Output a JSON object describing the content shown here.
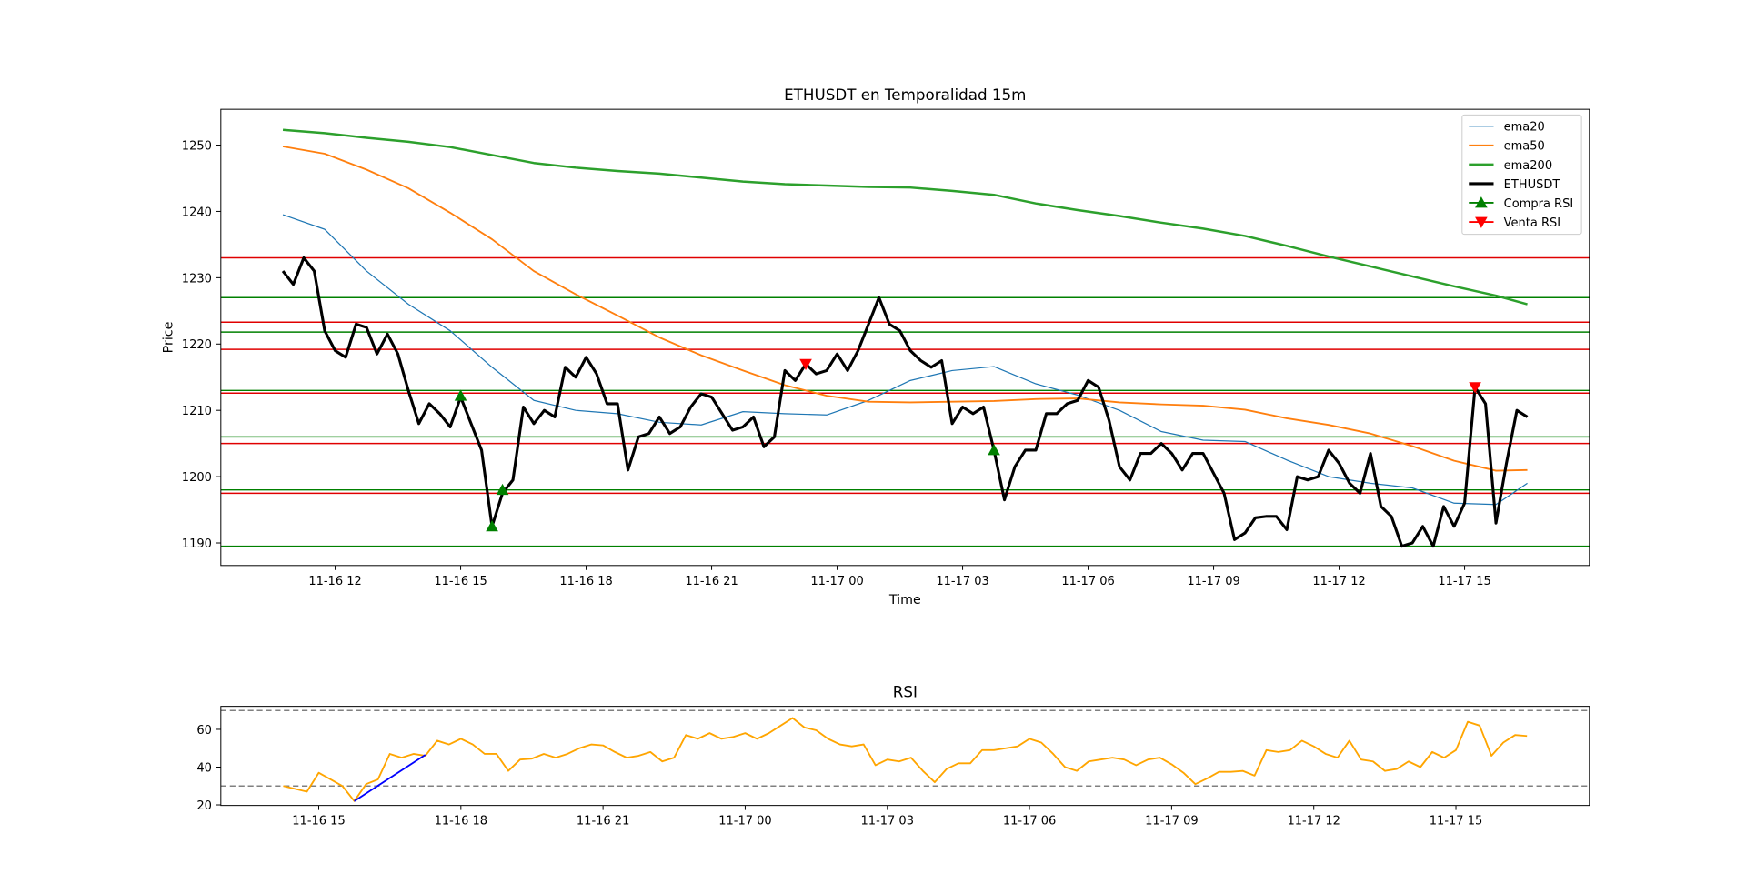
{
  "chart_data": [
    {
      "type": "line",
      "title": "ETHUSDT en Temporalidad 15m",
      "xlabel": "Time",
      "ylabel": "Price",
      "xlim": [
        "11-16 09:16",
        "11-17 17:59"
      ],
      "ylim": [
        1186.6,
        1255.4
      ],
      "yticks": [
        1190,
        1200,
        1210,
        1220,
        1230,
        1240,
        1250
      ],
      "xticks": [
        {
          "value": "11-16 12:00",
          "label": "11-16 12"
        },
        {
          "value": "11-16 15:00",
          "label": "11-16 15"
        },
        {
          "value": "11-16 18:00",
          "label": "11-16 18"
        },
        {
          "value": "11-16 21:00",
          "label": "11-16 21"
        },
        {
          "value": "11-17 00:00",
          "label": "11-17 00"
        },
        {
          "value": "11-17 03:00",
          "label": "11-17 03"
        },
        {
          "value": "11-17 06:00",
          "label": "11-17 06"
        },
        {
          "value": "11-17 09:00",
          "label": "11-17 09"
        },
        {
          "value": "11-17 12:00",
          "label": "11-17 12"
        },
        {
          "value": "11-17 15:00",
          "label": "11-17 15"
        }
      ],
      "legend": "upper right",
      "x": [
        "11-16 10:45",
        "11-16 11:00",
        "11-16 11:15",
        "11-16 11:30",
        "11-16 11:45",
        "11-16 12:00",
        "11-16 12:15",
        "11-16 12:30",
        "11-16 12:45",
        "11-16 13:00",
        "11-16 13:15",
        "11-16 13:30",
        "11-16 13:45",
        "11-16 14:00",
        "11-16 14:15",
        "11-16 14:30",
        "11-16 14:45",
        "11-16 15:00",
        "11-16 15:15",
        "11-16 15:30",
        "11-16 15:45",
        "11-16 16:00",
        "11-16 16:15",
        "11-16 16:30",
        "11-16 16:45",
        "11-16 17:00",
        "11-16 17:15",
        "11-16 17:30",
        "11-16 17:45",
        "11-16 18:00",
        "11-16 18:15",
        "11-16 18:30",
        "11-16 18:45",
        "11-16 19:00",
        "11-16 19:15",
        "11-16 19:30",
        "11-16 19:45",
        "11-16 20:00",
        "11-16 20:15",
        "11-16 20:30",
        "11-16 20:45",
        "11-16 21:00",
        "11-16 21:15",
        "11-16 21:30",
        "11-16 21:45",
        "11-16 22:00",
        "11-16 22:15",
        "11-16 22:30",
        "11-16 22:45",
        "11-16 23:00",
        "11-16 23:15",
        "11-16 23:30",
        "11-16 23:45",
        "11-17 00:00",
        "11-17 00:15",
        "11-17 00:30",
        "11-17 00:45",
        "11-17 01:00",
        "11-17 01:15",
        "11-17 01:30",
        "11-17 01:45",
        "11-17 02:00",
        "11-17 02:15",
        "11-17 02:30",
        "11-17 02:45",
        "11-17 03:00",
        "11-17 03:15",
        "11-17 03:30",
        "11-17 03:45",
        "11-17 04:00",
        "11-17 04:15",
        "11-17 04:30",
        "11-17 04:45",
        "11-17 05:00",
        "11-17 05:15",
        "11-17 05:30",
        "11-17 05:45",
        "11-17 06:00",
        "11-17 06:15",
        "11-17 06:30",
        "11-17 06:45",
        "11-17 07:00",
        "11-17 07:15",
        "11-17 07:30",
        "11-17 07:45",
        "11-17 08:00",
        "11-17 08:15",
        "11-17 08:30",
        "11-17 08:45",
        "11-17 09:00",
        "11-17 09:15",
        "11-17 09:30",
        "11-17 09:45",
        "11-17 10:00",
        "11-17 10:15",
        "11-17 10:30",
        "11-17 10:45",
        "11-17 11:00",
        "11-17 11:15",
        "11-17 11:30",
        "11-17 11:45",
        "11-17 12:00",
        "11-17 12:15",
        "11-17 12:30",
        "11-17 12:45",
        "11-17 13:00",
        "11-17 13:15",
        "11-17 13:30",
        "11-17 13:45",
        "11-17 14:00",
        "11-17 14:15",
        "11-17 14:30",
        "11-17 14:45",
        "11-17 15:00",
        "11-17 15:15",
        "11-17 15:30",
        "11-17 15:45",
        "11-17 16:00",
        "11-17 16:15",
        "11-17 16:30"
      ],
      "hlines": [
        {
          "value": 1233,
          "color": "#e00000"
        },
        {
          "value": 1223.3,
          "color": "#e00000"
        },
        {
          "value": 1219.2,
          "color": "#e00000"
        },
        {
          "value": 1212.6,
          "color": "#e00000"
        },
        {
          "value": 1205,
          "color": "#e00000"
        },
        {
          "value": 1197.5,
          "color": "#e00000"
        },
        {
          "value": 1227,
          "color": "#008000"
        },
        {
          "value": 1221.8,
          "color": "#008000"
        },
        {
          "value": 1213,
          "color": "#008000"
        },
        {
          "value": 1206,
          "color": "#008000"
        },
        {
          "value": 1198,
          "color": "#008000"
        },
        {
          "value": 1189.5,
          "color": "#008000"
        }
      ],
      "series": [
        {
          "name": "ema20",
          "color": "#1f77b4",
          "width": 1,
          "x": [
            "11-16 10:45",
            "11-16 11:45",
            "11-16 12:45",
            "11-16 13:45",
            "11-16 14:45",
            "11-16 15:45",
            "11-16 16:45",
            "11-16 17:45",
            "11-16 18:45",
            "11-16 19:45",
            "11-16 20:45",
            "11-16 21:45",
            "11-16 22:45",
            "11-16 23:45",
            "11-17 00:45",
            "11-17 01:45",
            "11-17 02:45",
            "11-17 03:45",
            "11-17 04:45",
            "11-17 05:45",
            "11-17 06:45",
            "11-17 07:45",
            "11-17 08:45",
            "11-17 09:45",
            "11-17 10:45",
            "11-17 11:45",
            "11-17 12:45",
            "11-17 13:45",
            "11-17 14:45",
            "11-17 15:45",
            "11-17 16:30"
          ],
          "values": [
            1239.5,
            1237.3,
            1231.0,
            1226.0,
            1222.0,
            1216.5,
            1211.5,
            1210.0,
            1209.5,
            1208.2,
            1207.8,
            1209.8,
            1209.5,
            1209.3,
            1211.5,
            1214.5,
            1216.0,
            1216.6,
            1214.0,
            1212.3,
            1210.0,
            1206.8,
            1205.5,
            1205.3,
            1202.5,
            1200.0,
            1199.0,
            1198.3,
            1196.0,
            1195.8,
            1199.0
          ]
        },
        {
          "name": "ema50",
          "color": "#ff7f0e",
          "width": 1.5,
          "x": [
            "11-16 10:45",
            "11-16 11:45",
            "11-16 12:45",
            "11-16 13:45",
            "11-16 14:45",
            "11-16 15:45",
            "11-16 16:45",
            "11-16 17:45",
            "11-16 18:45",
            "11-16 19:45",
            "11-16 20:45",
            "11-16 21:45",
            "11-16 22:45",
            "11-16 23:45",
            "11-17 00:45",
            "11-17 01:45",
            "11-17 02:45",
            "11-17 03:45",
            "11-17 04:45",
            "11-17 05:45",
            "11-17 06:45",
            "11-17 07:45",
            "11-17 08:45",
            "11-17 09:45",
            "11-17 10:45",
            "11-17 11:45",
            "11-17 12:45",
            "11-17 13:45",
            "11-17 14:45",
            "11-17 15:45",
            "11-17 16:30"
          ],
          "values": [
            1249.8,
            1248.7,
            1246.3,
            1243.5,
            1239.8,
            1235.8,
            1231.0,
            1227.5,
            1224.3,
            1221.0,
            1218.3,
            1216.0,
            1213.8,
            1212.2,
            1211.3,
            1211.2,
            1211.3,
            1211.4,
            1211.7,
            1211.8,
            1211.2,
            1210.9,
            1210.7,
            1210.1,
            1208.8,
            1207.8,
            1206.5,
            1204.6,
            1202.4,
            1200.9,
            1201.0
          ]
        },
        {
          "name": "ema200",
          "color": "#2ca02c",
          "width": 2,
          "x": [
            "11-16 10:45",
            "11-16 11:45",
            "11-16 12:45",
            "11-16 13:45",
            "11-16 14:45",
            "11-16 15:45",
            "11-16 16:45",
            "11-16 17:45",
            "11-16 18:45",
            "11-16 19:45",
            "11-16 20:45",
            "11-16 21:45",
            "11-16 22:45",
            "11-16 23:45",
            "11-17 00:45",
            "11-17 01:45",
            "11-17 02:45",
            "11-17 03:45",
            "11-17 04:45",
            "11-17 05:45",
            "11-17 06:45",
            "11-17 07:45",
            "11-17 08:45",
            "11-17 09:45",
            "11-17 10:45",
            "11-17 11:45",
            "11-17 12:45",
            "11-17 13:45",
            "11-17 14:45",
            "11-17 15:45",
            "11-17 16:30"
          ],
          "values": [
            1252.3,
            1251.8,
            1251.1,
            1250.5,
            1249.7,
            1248.5,
            1247.3,
            1246.6,
            1246.1,
            1245.7,
            1245.1,
            1244.5,
            1244.1,
            1243.9,
            1243.7,
            1243.6,
            1243.1,
            1242.5,
            1241.2,
            1240.2,
            1239.3,
            1238.3,
            1237.4,
            1236.3,
            1234.8,
            1233.2,
            1231.7,
            1230.2,
            1228.7,
            1227.3,
            1226.0
          ]
        },
        {
          "name": "ETHUSDT",
          "color": "#000000",
          "width": 2.5,
          "values": [
            1231,
            1229,
            1233,
            1231,
            1222,
            1219,
            1218,
            1223,
            1222.5,
            1218.5,
            1221.5,
            1218.5,
            1213,
            1208,
            1211,
            1209.5,
            1207.5,
            1212,
            1208,
            1204,
            1192.5,
            1197.5,
            1199.5,
            1210.5,
            1208,
            1210,
            1209,
            1216.5,
            1215,
            1218,
            1215.5,
            1211,
            1211,
            1201,
            1206,
            1206.5,
            1209,
            1206.5,
            1207.5,
            1210.5,
            1212.5,
            1212,
            1209.5,
            1207,
            1207.5,
            1209,
            1204.5,
            1206,
            1216,
            1214.5,
            1217,
            1215.5,
            1216,
            1218.5,
            1216,
            1219,
            1223,
            1227,
            1223,
            1222,
            1219,
            1217.5,
            1216.5,
            1217.5,
            1208,
            1210.5,
            1209.5,
            1210.5,
            1204,
            1196.5,
            1201.5,
            1204,
            1204,
            1209.5,
            1209.5,
            1211,
            1211.5,
            1214.5,
            1213.5,
            1208.5,
            1201.5,
            1199.5,
            1203.5,
            1203.5,
            1205,
            1203.5,
            1201,
            1203.5,
            1203.5,
            1200.5,
            1197.5,
            1190.5,
            1191.5,
            1193.8,
            1194,
            1194,
            1192,
            1200,
            1199.5,
            1200,
            1204,
            1202,
            1199,
            1197.5,
            1203.5,
            1195.5,
            1194,
            1189.5,
            1190,
            1192.5,
            1189.5,
            1195.5,
            1192.5,
            1196,
            1213.5,
            1211,
            1193,
            1202,
            1210,
            1209
          ]
        },
        {
          "name": "Compra RSI",
          "color": "#008000",
          "marker": "^",
          "x": [
            "11-16 15:00",
            "11-16 15:45",
            "11-16 16:00",
            "11-17 03:45"
          ],
          "values": [
            1212.2,
            1192.5,
            1198,
            1204
          ]
        },
        {
          "name": "Venta RSI",
          "color": "#ff0000",
          "marker": "v",
          "x": [
            "11-16 23:15",
            "11-17 15:15"
          ],
          "values": [
            1217,
            1213.5
          ]
        }
      ]
    },
    {
      "type": "line",
      "title": "RSI",
      "xlim": [
        "11-16 12:56",
        "11-17 17:49"
      ],
      "ylim": [
        19.7,
        72.2
      ],
      "yticks": [
        20,
        40,
        60
      ],
      "xticks": [
        {
          "value": "11-16 15:00",
          "label": "11-16 15"
        },
        {
          "value": "11-16 18:00",
          "label": "11-16 18"
        },
        {
          "value": "11-16 21:00",
          "label": "11-16 21"
        },
        {
          "value": "11-17 00:00",
          "label": "11-17 00"
        },
        {
          "value": "11-17 03:00",
          "label": "11-17 03"
        },
        {
          "value": "11-17 06:00",
          "label": "11-17 06"
        },
        {
          "value": "11-17 09:00",
          "label": "11-17 09"
        },
        {
          "value": "11-17 12:00",
          "label": "11-17 12"
        },
        {
          "value": "11-17 15:00",
          "label": "11-17 15"
        }
      ],
      "x": [
        "11-16 14:15",
        "11-16 14:30",
        "11-16 14:45",
        "11-16 15:00",
        "11-16 15:15",
        "11-16 15:30",
        "11-16 15:45",
        "11-16 16:00",
        "11-16 16:15",
        "11-16 16:30",
        "11-16 16:45",
        "11-16 17:00",
        "11-16 17:15",
        "11-16 17:30",
        "11-16 17:45",
        "11-16 18:00",
        "11-16 18:15",
        "11-16 18:30",
        "11-16 18:45",
        "11-16 19:00",
        "11-16 19:15",
        "11-16 19:30",
        "11-16 19:45",
        "11-16 20:00",
        "11-16 20:15",
        "11-16 20:30",
        "11-16 20:45",
        "11-16 21:00",
        "11-16 21:15",
        "11-16 21:30",
        "11-16 21:45",
        "11-16 22:00",
        "11-16 22:15",
        "11-16 22:30",
        "11-16 22:45",
        "11-16 23:00",
        "11-16 23:15",
        "11-16 23:30",
        "11-16 23:45",
        "11-17 00:00",
        "11-17 00:15",
        "11-17 00:30",
        "11-17 00:45",
        "11-17 01:00",
        "11-17 01:15",
        "11-17 01:30",
        "11-17 01:45",
        "11-17 02:00",
        "11-17 02:15",
        "11-17 02:30",
        "11-17 02:45",
        "11-17 03:00",
        "11-17 03:15",
        "11-17 03:30",
        "11-17 03:45",
        "11-17 04:00",
        "11-17 04:15",
        "11-17 04:30",
        "11-17 04:45",
        "11-17 05:00",
        "11-17 05:15",
        "11-17 05:30",
        "11-17 05:45",
        "11-17 06:00",
        "11-17 06:15",
        "11-17 06:30",
        "11-17 06:45",
        "11-17 07:00",
        "11-17 07:15",
        "11-17 07:30",
        "11-17 07:45",
        "11-17 08:00",
        "11-17 08:15",
        "11-17 08:30",
        "11-17 08:45",
        "11-17 09:00",
        "11-17 09:15",
        "11-17 09:30",
        "11-17 09:45",
        "11-17 10:00",
        "11-17 10:15",
        "11-17 10:30",
        "11-17 10:45",
        "11-17 11:00",
        "11-17 11:15",
        "11-17 11:30",
        "11-17 11:45",
        "11-17 12:00",
        "11-17 12:15",
        "11-17 12:30",
        "11-17 12:45",
        "11-17 13:00",
        "11-17 13:15",
        "11-17 13:30",
        "11-17 13:45",
        "11-17 14:00",
        "11-17 14:15",
        "11-17 14:30",
        "11-17 14:45",
        "11-17 15:00",
        "11-17 15:15",
        "11-17 15:30",
        "11-17 15:45",
        "11-17 16:00",
        "11-17 16:15",
        "11-17 16:30"
      ],
      "hlines": [
        {
          "value": 70,
          "color": "#808080",
          "style": "dashed"
        },
        {
          "value": 30,
          "color": "#808080",
          "style": "dashed"
        }
      ],
      "series": [
        {
          "color": "#ffa500",
          "width": 1.5,
          "values": [
            30,
            28.5,
            27,
            37,
            33.5,
            30,
            22,
            31,
            33.5,
            47,
            45,
            47,
            46,
            54,
            52,
            55,
            52,
            47,
            47,
            38,
            44,
            44.5,
            47,
            45,
            47,
            50,
            52,
            51.5,
            48,
            45,
            46,
            48,
            43,
            45,
            57,
            55,
            58,
            55,
            56,
            58,
            55,
            58,
            62,
            66,
            61,
            59.5,
            55,
            52,
            51,
            52,
            41,
            44,
            43,
            45,
            38,
            32,
            39,
            42,
            42,
            49,
            49,
            50,
            51,
            55,
            53,
            47,
            40,
            38,
            43,
            44,
            45,
            44,
            41,
            44,
            45,
            41.5,
            37,
            31,
            34,
            37.5,
            37.5,
            38,
            35.5,
            49,
            48,
            49,
            54,
            51,
            47,
            45,
            54,
            44,
            43,
            38,
            39,
            43,
            40,
            48,
            45,
            49,
            64,
            62,
            46,
            53,
            57,
            56.5
          ]
        },
        {
          "color": "#0000ff",
          "width": 1.5,
          "x": [
            "11-16 15:45",
            "11-16 17:15"
          ],
          "values": [
            22,
            46.5
          ]
        }
      ]
    }
  ]
}
